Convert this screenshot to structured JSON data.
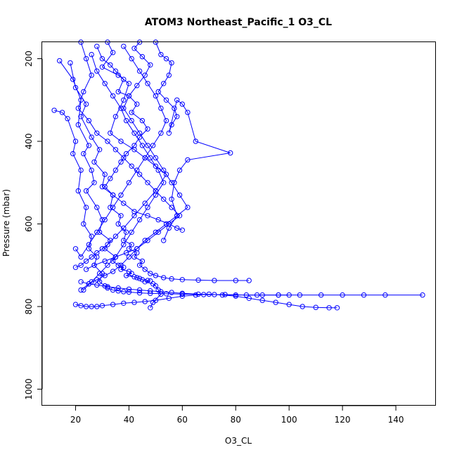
{
  "chart_data": {
    "type": "line",
    "title": "ATOM3 Northeast_Pacific_1 O3_CL",
    "xlabel": "O3_CL",
    "ylabel": "Pressure (mbar)",
    "xlim": [
      7.5,
      155
    ],
    "ylim": [
      1040,
      160
    ],
    "y_reversed": true,
    "x_ticks": [
      20,
      40,
      60,
      80,
      100,
      120,
      140
    ],
    "y_ticks": [
      200,
      400,
      600,
      800,
      1000
    ],
    "grid": false,
    "legend": "none",
    "color": "#0000ff",
    "marker": "open-circle",
    "series": [
      {
        "x": [
          14,
          19,
          22,
          21,
          25,
          23,
          26,
          27,
          24,
          28,
          30,
          29,
          33,
          31,
          35,
          34,
          36,
          38,
          37,
          40,
          41,
          39,
          42,
          43,
          44,
          45,
          47,
          48,
          46,
          49,
          50,
          51,
          52,
          49,
          48
        ],
        "y": [
          205,
          250,
          300,
          360,
          410,
          430,
          470,
          500,
          520,
          560,
          590,
          620,
          640,
          660,
          680,
          690,
          700,
          705,
          710,
          715,
          720,
          725,
          728,
          730,
          732,
          735,
          737,
          738,
          740,
          745,
          750,
          760,
          770,
          790,
          803
        ]
      },
      {
        "x": [
          18,
          20,
          24,
          22,
          26,
          29,
          27,
          31,
          30,
          34,
          33,
          37,
          36,
          39,
          38,
          41,
          40,
          43,
          42,
          45,
          44,
          46,
          48,
          50,
          53,
          56,
          60,
          66,
          72,
          80,
          85
        ],
        "y": [
          210,
          270,
          310,
          340,
          390,
          420,
          450,
          480,
          510,
          530,
          560,
          580,
          600,
          620,
          640,
          650,
          660,
          670,
          680,
          690,
          700,
          710,
          720,
          725,
          730,
          733,
          735,
          736,
          737,
          737,
          737
        ]
      },
      {
        "x": [
          12,
          15,
          17,
          20,
          19,
          22,
          21,
          24,
          23,
          26,
          25,
          28,
          27,
          30,
          29,
          31,
          32,
          34,
          36,
          38,
          40,
          44,
          48,
          54,
          60,
          68,
          76,
          84,
          90,
          96,
          100
        ],
        "y": [
          325,
          330,
          345,
          400,
          430,
          470,
          520,
          560,
          600,
          630,
          660,
          680,
          700,
          720,
          740,
          750,
          755,
          760,
          762,
          764,
          765,
          767,
          768,
          769,
          770,
          771,
          771,
          772,
          772,
          772,
          772
        ]
      },
      {
        "x": [
          22,
          25,
          28,
          32,
          36,
          40,
          44,
          48,
          52,
          56,
          60,
          66,
          72,
          80,
          88,
          96,
          104,
          112,
          120,
          128,
          136,
          150
        ],
        "y": [
          740,
          745,
          748,
          752,
          755,
          758,
          760,
          762,
          764,
          766,
          768,
          770,
          771,
          772,
          772,
          772,
          772,
          772,
          772,
          772,
          772,
          772
        ]
      },
      {
        "x": [
          20,
          22,
          24,
          26,
          28,
          30,
          34,
          38,
          42,
          46,
          50,
          55,
          60,
          65,
          70,
          75,
          80,
          85,
          90,
          95,
          100,
          105,
          110,
          115,
          118
        ],
        "y": [
          795,
          798,
          800,
          800,
          800,
          798,
          795,
          792,
          790,
          788,
          785,
          780,
          775,
          772,
          770,
          772,
          775,
          780,
          785,
          790,
          795,
          800,
          802,
          803,
          803
        ]
      },
      {
        "x": [
          50,
          52,
          54,
          56,
          55,
          53,
          51,
          54,
          57,
          58,
          56,
          55,
          58,
          60,
          62,
          65,
          78,
          62,
          59,
          57,
          56,
          58,
          55,
          53
        ],
        "y": [
          160,
          190,
          200,
          210,
          240,
          260,
          280,
          300,
          320,
          340,
          360,
          380,
          300,
          310,
          330,
          400,
          428,
          445,
          470,
          500,
          540,
          580,
          610,
          640
        ]
      },
      {
        "x": [
          28,
          30,
          33,
          35,
          38,
          36,
          40,
          43,
          41,
          45,
          47,
          44,
          42,
          39,
          37,
          35,
          33,
          31,
          34,
          38,
          42,
          47,
          51,
          55,
          58,
          60
        ],
        "y": [
          170,
          200,
          215,
          230,
          250,
          280,
          290,
          310,
          330,
          350,
          370,
          390,
          410,
          430,
          450,
          470,
          490,
          510,
          530,
          550,
          570,
          580,
          590,
          600,
          610,
          615
        ]
      },
      {
        "x": [
          32,
          34,
          30,
          36,
          40,
          38,
          35,
          33,
          37,
          42,
          46,
          50,
          54,
          50,
          46,
          42,
          38,
          35,
          32,
          30,
          28,
          26,
          24,
          22,
          20
        ],
        "y": [
          160,
          185,
          220,
          240,
          260,
          300,
          340,
          380,
          400,
          420,
          440,
          460,
          480,
          520,
          550,
          580,
          610,
          630,
          650,
          660,
          670,
          680,
          690,
          700,
          705
        ]
      },
      {
        "x": [
          44,
          42,
          45,
          48,
          46,
          43,
          40,
          38,
          41,
          44,
          47,
          50,
          53,
          56,
          59,
          62,
          58,
          54,
          50,
          46,
          43,
          40,
          37,
          34,
          31,
          28,
          25,
          22
        ],
        "y": [
          160,
          175,
          195,
          215,
          240,
          265,
          290,
          320,
          350,
          380,
          410,
          440,
          470,
          500,
          530,
          560,
          580,
          600,
          620,
          640,
          660,
          680,
          700,
          715,
          725,
          735,
          745,
          760
        ]
      },
      {
        "x": [
          22,
          24,
          26,
          23,
          21,
          25,
          28,
          32,
          35,
          38,
          41,
          44,
          47,
          50,
          53,
          56,
          59,
          55,
          51,
          47,
          43,
          39,
          35,
          31,
          27,
          24
        ],
        "y": [
          160,
          200,
          240,
          280,
          320,
          350,
          380,
          400,
          420,
          440,
          460,
          480,
          500,
          520,
          540,
          560,
          580,
          600,
          620,
          640,
          660,
          670,
          680,
          690,
          700,
          710
        ]
      },
      {
        "x": [
          26,
          28,
          31,
          34,
          37,
          39,
          42,
          45,
          48,
          51,
          53,
          50,
          47,
          44,
          41,
          38,
          35,
          32,
          29,
          26,
          23
        ],
        "y": [
          190,
          230,
          260,
          290,
          320,
          350,
          380,
          410,
          440,
          470,
          500,
          530,
          560,
          590,
          620,
          650,
          680,
          700,
          720,
          740,
          760
        ]
      },
      {
        "x": [
          38,
          41,
          44,
          47,
          50,
          52,
          54,
          52,
          49,
          46,
          43,
          40,
          37,
          34,
          31,
          28,
          25,
          22,
          20
        ],
        "y": [
          170,
          200,
          230,
          260,
          290,
          320,
          350,
          380,
          410,
          440,
          470,
          500,
          530,
          560,
          590,
          620,
          650,
          680,
          660
        ]
      }
    ]
  }
}
